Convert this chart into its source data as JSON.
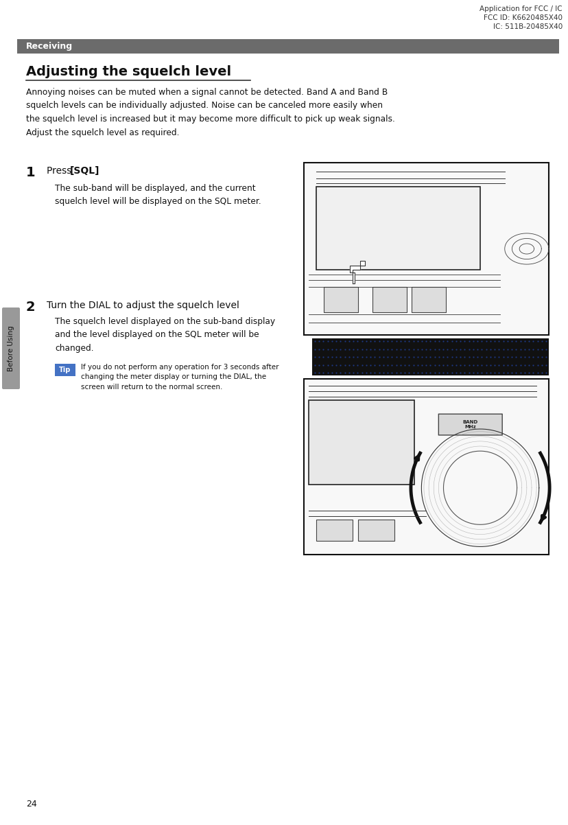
{
  "page_width": 8.29,
  "page_height": 12.02,
  "bg_color": "#ffffff",
  "header_text_line1": "Application for FCC / IC",
  "header_text_line2": "FCC ID: K6620485X40",
  "header_text_line3": "IC: 511B-20485X40",
  "section_bar_color": "#6b6b6b",
  "section_bar_text": "Receiving",
  "section_bar_text_color": "#ffffff",
  "title": "Adjusting the squelch level",
  "intro_text": "Annoying noises can be muted when a signal cannot be detected. Band A and Band B\nsquelch levels can be individually adjusted. Noise can be canceled more easily when\nthe squelch level is increased but it may become more difficult to pick up weak signals.\nAdjust the squelch level as required.",
  "step1_num": "1",
  "step1_title_plain": "Press ",
  "step1_title_bold": "[SQL]",
  "step1_body": "The sub-band will be displayed, and the current\nsquelch level will be displayed on the SQL meter.",
  "step2_num": "2",
  "step2_title": "Turn the DIAL to adjust the squelch level",
  "step2_body": "The squelch level displayed on the sub-band display\nand the level displayed on the SQL meter will be\nchanged.",
  "tip_label": "Tip",
  "tip_label_bg": "#4472c4",
  "tip_text": "If you do not perform any operation for 3 seconds after\nchanging the meter display or turning the DIAL, the\nscreen will return to the normal screen.",
  "page_number": "24",
  "side_label": "Before Using",
  "side_tab_color": "#999999",
  "image1_border": "#111111",
  "image2_bg": "#111111",
  "image2_dot_color": "#2244aa",
  "image3_border": "#111111"
}
